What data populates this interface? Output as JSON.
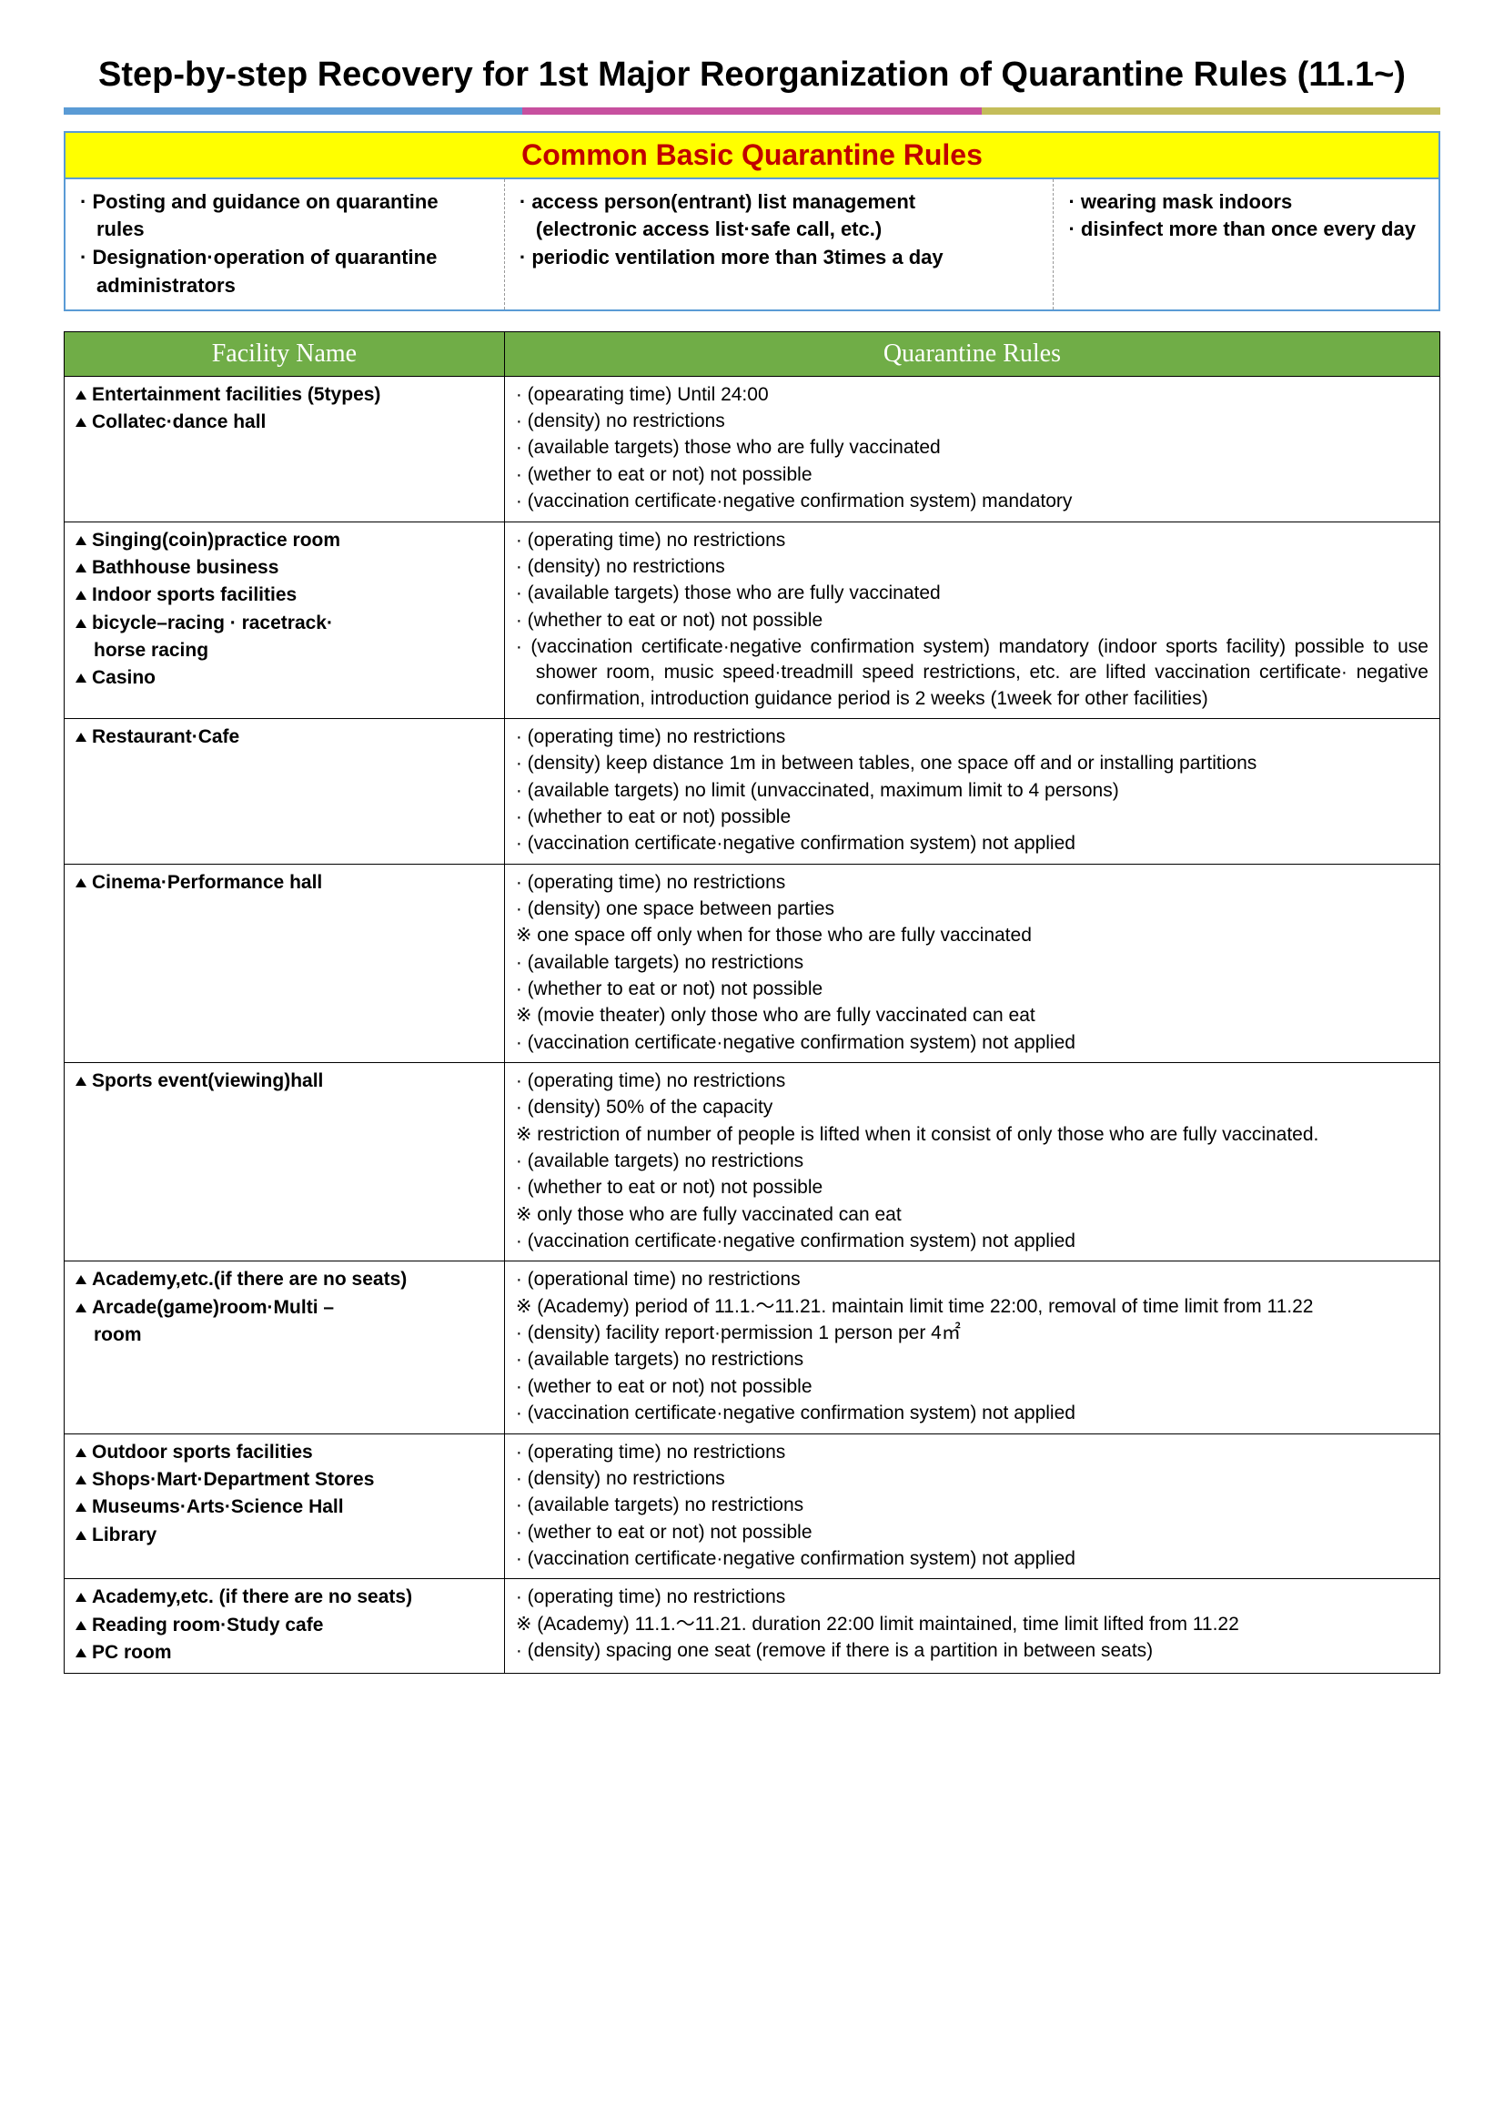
{
  "title": "Step-by-step Recovery for 1st Major Reorganization of Quarantine Rules  (11.1~)",
  "accent_colors": [
    "#5a9bd5",
    "#c7509f",
    "#c4bd5a"
  ],
  "common": {
    "header": "Common  Basic  Quarantine  Rules",
    "cols": [
      [
        "· Posting  and  guidance  on  quarantine  rules",
        "· Designation·operation  of  quarantine  administrators"
      ],
      [
        "· access  person(entrant)  list  management",
        "(electronic access list·safe call, etc.)",
        "· periodic  ventilation  more  than  3times  a  day"
      ],
      [
        "· wearing  mask  indoors",
        "· disinfect  more  than  once  every  day"
      ]
    ]
  },
  "tableHeaders": {
    "facility": "Facility  Name",
    "rules": "Quarantine  Rules"
  },
  "rows": [
    {
      "facilities": [
        "Entertainment          facilities  (5types)",
        "Collatec·dance  hall"
      ],
      "rules": [
        "· (opearating  time)  Until  24:00",
        "· (density)  no  restrictions",
        "· (available  targets)  those  who  are  fully  vaccinated",
        "· (wether  to  eat  or  not)  not  possible",
        "· (vaccination  certificate·negative  confirmation  system)  mandatory"
      ]
    },
    {
      "facilities": [
        "Singing(coin)practice room",
        "Bathhouse  business",
        "Indoor  sports  facilities",
        "bicycle–racing         ·  racetrack·",
        "horse  racing",
        "Casino"
      ],
      "facilitySubFlags": [
        0,
        0,
        0,
        0,
        1,
        0
      ],
      "rules": [
        "· (operating  time)  no  restrictions",
        "· (density)  no  restrictions",
        "· (available  targets)  those  who  are  fully  vaccinated",
        "· (whether  to  eat  or  not)  not  possible",
        "· (vaccination  certificate·negative  confirmation  system)  mandatory  (indoor  sports  facility)  possible  to  use  shower  room,  music  speed·treadmill  speed  restrictions,  etc.  are  lifted  vaccination   certificate·   negative   confirmation,   introduction  guidance  period  is  2  weeks  (1week  for  other  facilities)"
      ]
    },
    {
      "facilities": [
        "Restaurant·Cafe"
      ],
      "rules": [
        "· (operating  time)  no  restrictions",
        "· (density)  keep  distance  1m  in  between  tables,  one  space  off  and  or  installing  partitions",
        "·  (available  targets)  no  limit  (unvaccinated,  maximum  limit  to  4  persons)",
        "· (whether  to  eat  or  not)  possible",
        "·    (vaccination    certificate·negative    confirmation    system)    not  applied"
      ]
    },
    {
      "facilities": [
        "Cinema·Performance  hall"
      ],
      "rules": [
        "· (operating  time)  no  restrictions",
        "· (density)  one  space  between  parties",
        "※  one  space  off  only  when  for  those  who  are  fully  vaccinated",
        "· (available  targets)  no  restrictions",
        "· (whether  to  eat  or  not)  not  possible",
        "※  (movie  theater)  only  those  who  are  fully  vaccinated  can  eat",
        "·    (vaccination    certificate·negative    confirmation    system)    not  applied"
      ]
    },
    {
      "facilities": [
        "Sports  event(viewing)hall"
      ],
      "rules": [
        "· (operating  time)  no  restrictions",
        "· (density)  50%  of  the  capacity",
        "※  restriction  of  number  of  people  is  lifted  when  it  consist  of  only  those  who  are  fully  vaccinated.",
        "· (available  targets)  no  restrictions",
        "· (whether  to  eat  or  not)  not  possible",
        "※  only  those  who  are  fully  vaccinated  can  eat",
        "·    (vaccination    certificate·negative    confirmation    system)    not  applied"
      ]
    },
    {
      "facilities": [
        "Academy,etc.(if         there  are  no  seats)",
        "Arcade(game)room·Multi –",
        "room"
      ],
      "facilitySubFlags": [
        0,
        0,
        1
      ],
      "rules": [
        "· (operational  time)  no  restrictions",
        "※ (Academy)  period  of  11.1.～11.21.  maintain  limit  time  22:00,  removal  of  time  limit  from  11.22",
        "· (density)  facility  report·permission  1  person  per  4㎡",
        "· (available  targets)  no  restrictions",
        "· (wether  to  eat  or  not)  not  possible",
        "·    (vaccination    certificate·negative    confirmation    system)    not  applied"
      ]
    },
    {
      "facilities": [
        "Outdoor  sports  facilities",
        "Shops·Mart·Department  Stores",
        "Museums·Arts·Science  Hall",
        "Library"
      ],
      "rules": [
        "· (operating  time)  no  restrictions",
        "· (density)  no  restrictions",
        "· (available  targets)  no  restrictions",
        "· (wether  to  eat  or  not)  not  possible",
        "·    (vaccination    certificate·negative    confirmation    system)    not  applied"
      ]
    },
    {
      "facilities": [
        "Academy,etc.    (if    there  are  no  seats)",
        "Reading          room·Study  cafe",
        "PC  room"
      ],
      "rules": [
        "· (operating  time)  no  restrictions",
        "※ (Academy)  11.1.～11.21.  duration  22:00  limit  maintained,  time  limit  lifted  from  11.22",
        "·  (density)  spacing  one  seat  (remove  if  there  is  a  partition  in  between  seats)"
      ]
    }
  ]
}
